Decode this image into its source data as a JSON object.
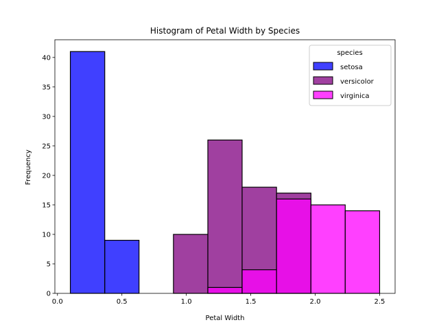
{
  "chart_data": {
    "type": "bar",
    "title": "Histogram of Petal Width by Species",
    "xlabel": "Petal Width",
    "ylabel": "Frequency",
    "xlim": [
      -0.02,
      2.62
    ],
    "ylim": [
      0,
      43
    ],
    "x_ticks": [
      0.0,
      0.5,
      1.0,
      1.5,
      2.0,
      2.5
    ],
    "x_tick_labels": [
      "0.0",
      "0.5",
      "1.0",
      "1.5",
      "2.0",
      "2.5"
    ],
    "y_ticks": [
      0,
      5,
      10,
      15,
      20,
      25,
      30,
      35,
      40
    ],
    "y_tick_labels": [
      "0",
      "5",
      "10",
      "15",
      "20",
      "25",
      "30",
      "35",
      "40"
    ],
    "bin_edges": [
      0.1,
      0.367,
      0.633,
      0.9,
      1.167,
      1.433,
      1.7,
      1.967,
      2.233,
      2.5
    ],
    "legend": {
      "title": "species",
      "position": "top-right"
    },
    "series": [
      {
        "name": "setosa",
        "color": "#0000ff",
        "values": [
          41,
          9,
          0,
          0,
          0,
          0,
          0,
          0,
          0
        ]
      },
      {
        "name": "versicolor",
        "color": "#800080",
        "values": [
          0,
          0,
          0,
          10,
          26,
          18,
          17,
          0,
          0
        ]
      },
      {
        "name": "virginica",
        "color": "#ff00ff",
        "values": [
          0,
          0,
          0,
          0,
          1,
          4,
          16,
          15,
          14
        ]
      }
    ]
  }
}
